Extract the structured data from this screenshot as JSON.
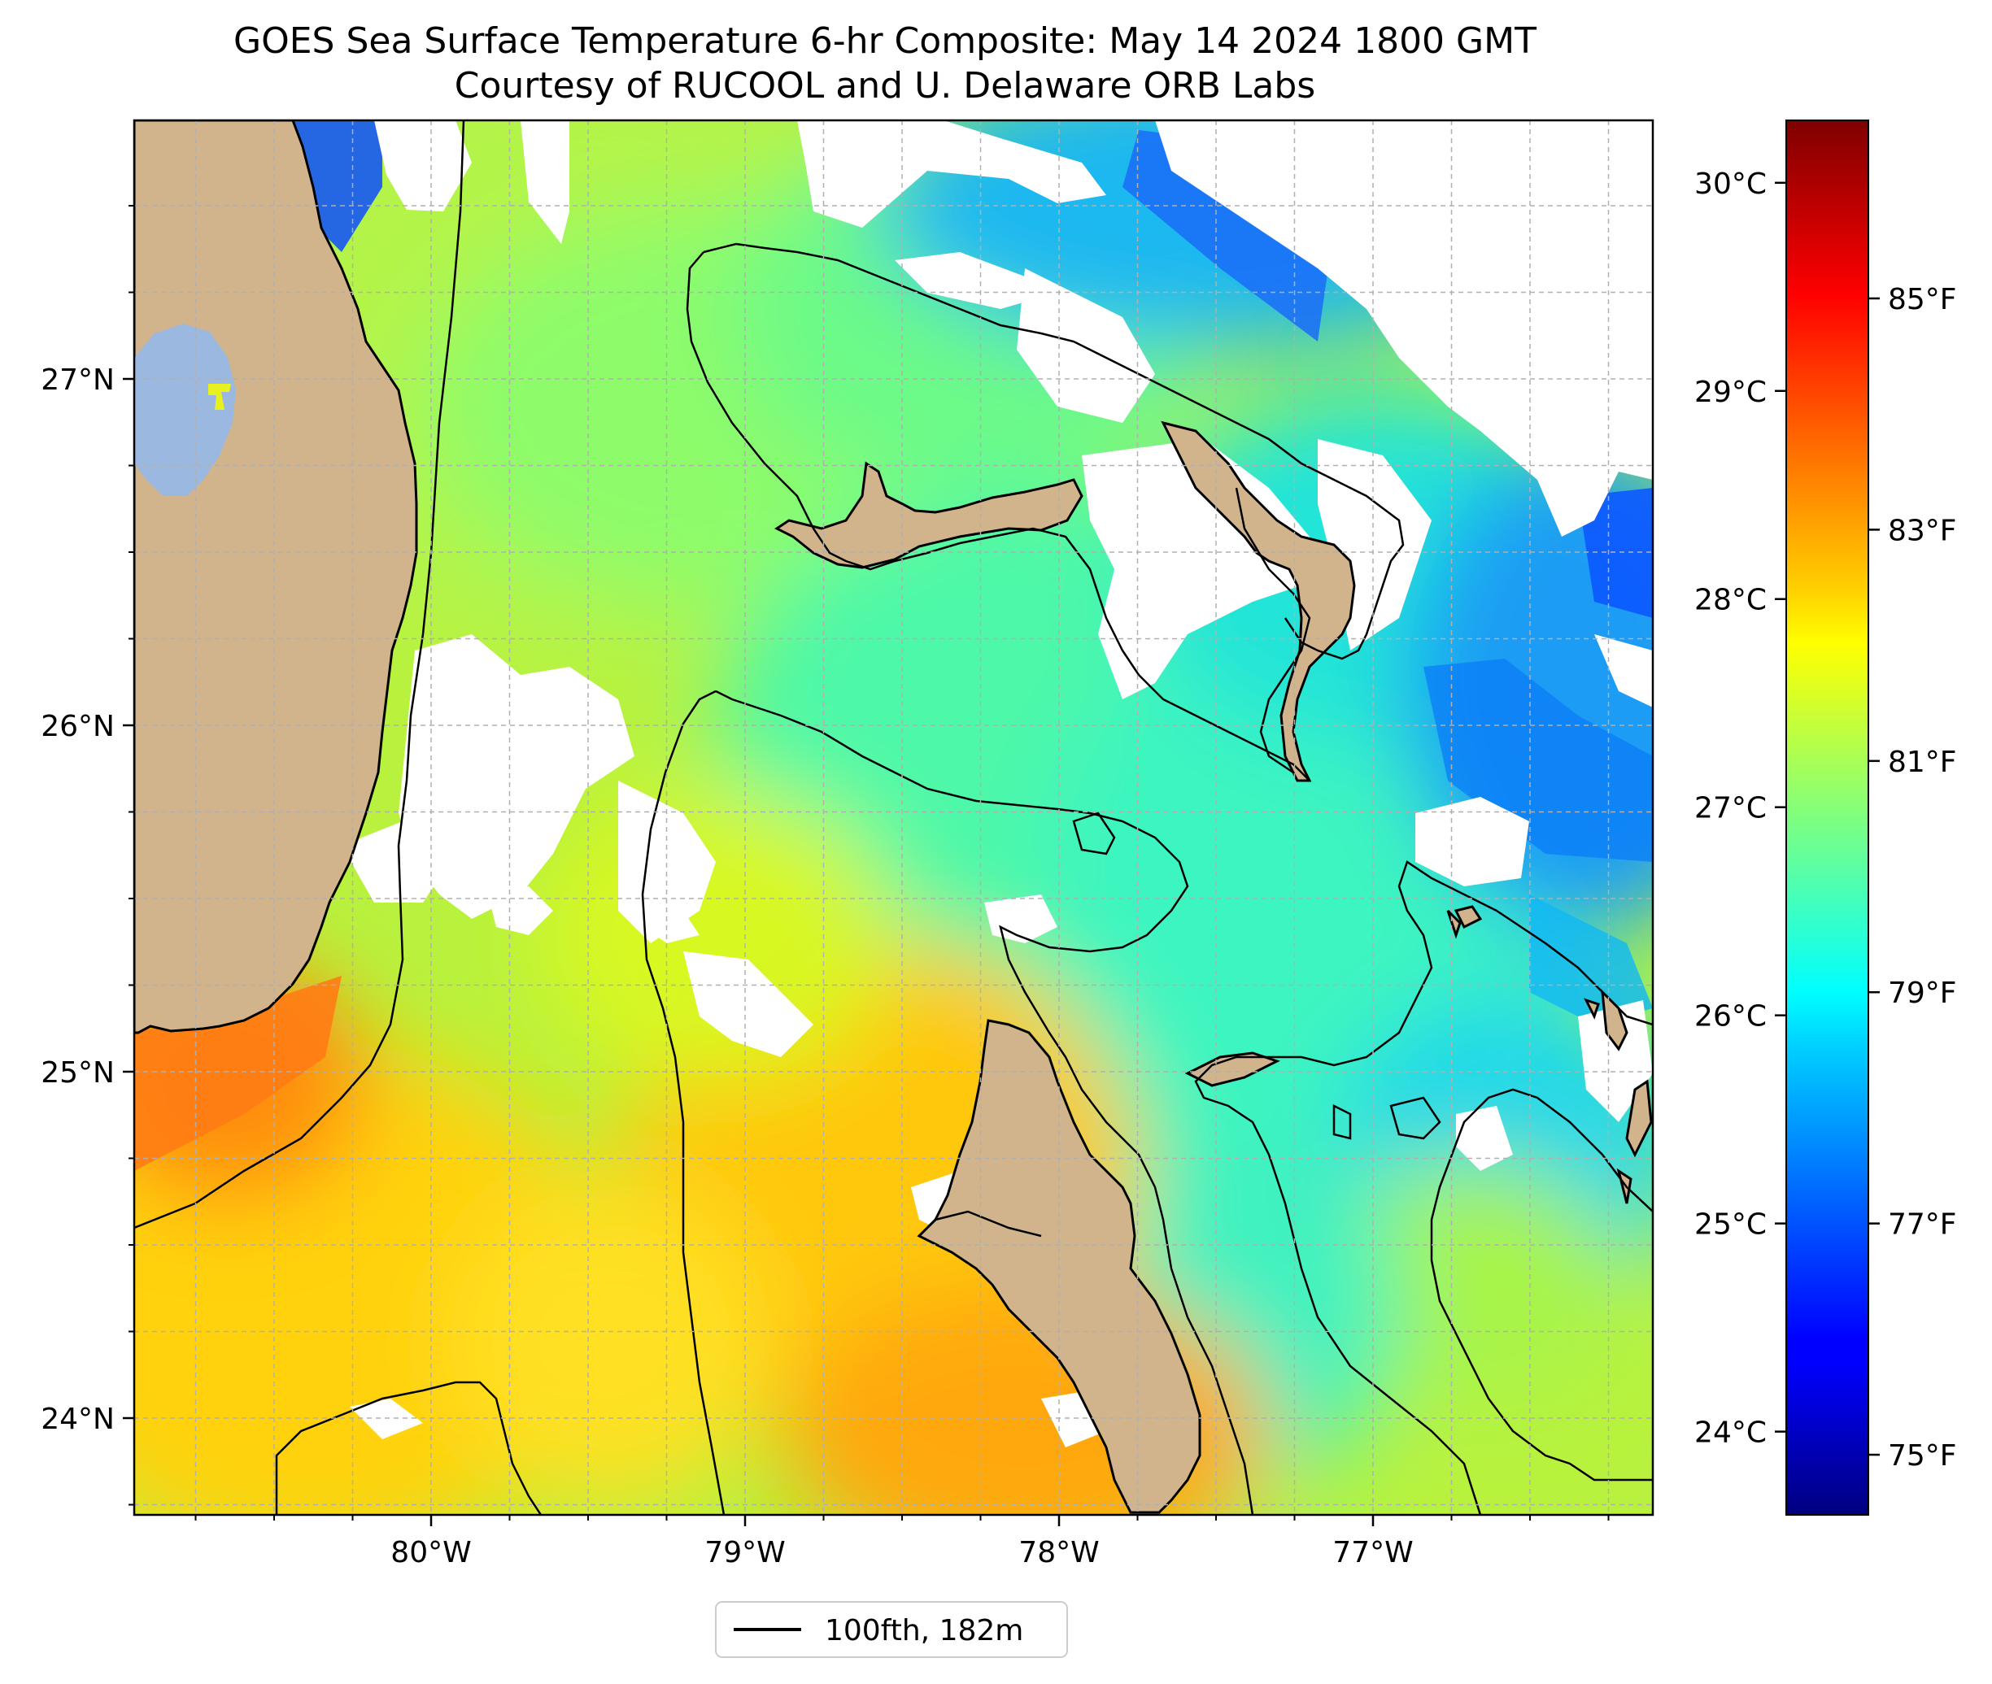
{
  "title": {
    "line1": "GOES Sea Surface Temperature 6-hr Composite: May 14 2024 1800 GMT",
    "line2": "Courtesy of RUCOOL and U. Delaware ORB Labs"
  },
  "map": {
    "region_lon": [
      -80.95,
      -76.1
    ],
    "region_lat": [
      23.75,
      27.8
    ],
    "lon_ticks": [
      {
        "value": -80,
        "label": "80°W"
      },
      {
        "value": -79,
        "label": "79°W"
      },
      {
        "value": -78,
        "label": "78°W"
      },
      {
        "value": -77,
        "label": "77°W"
      }
    ],
    "lat_ticks": [
      {
        "value": 27,
        "label": "27°N"
      },
      {
        "value": 26,
        "label": "26°N"
      },
      {
        "value": 25,
        "label": "25°N"
      },
      {
        "value": 24,
        "label": "24°N"
      }
    ],
    "grid": "dashed, on",
    "land_color": "#d2b48c",
    "lake_color": "#9bb8e0",
    "cloud_mask_color": "#ffffff",
    "contour_color": "#000000"
  },
  "colorbar": {
    "colormap": "jet",
    "celsius_ticks": [
      {
        "value": 30,
        "label": "30°C"
      },
      {
        "value": 29,
        "label": "29°C"
      },
      {
        "value": 28,
        "label": "28°C"
      },
      {
        "value": 27,
        "label": "27°C"
      },
      {
        "value": 26,
        "label": "26°C"
      },
      {
        "value": 25,
        "label": "25°C"
      },
      {
        "value": 24,
        "label": "24°C"
      }
    ],
    "fahrenheit_ticks": [
      {
        "value": 85,
        "label": "85°F"
      },
      {
        "value": 83,
        "label": "83°F"
      },
      {
        "value": 81,
        "label": "81°F"
      },
      {
        "value": 79,
        "label": "79°F"
      },
      {
        "value": 77,
        "label": "77°F"
      },
      {
        "value": 75,
        "label": "75°F"
      }
    ],
    "range_c": [
      23.6,
      30.3
    ]
  },
  "legend": {
    "label": "100fth, 182m",
    "placement": "bottom-center"
  }
}
